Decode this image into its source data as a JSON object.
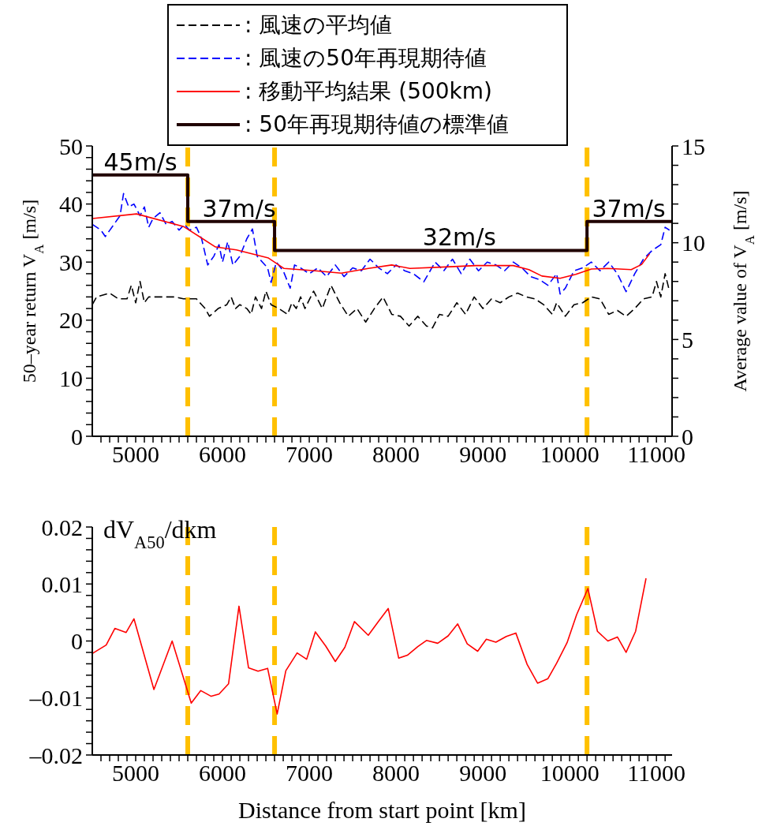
{
  "chart_data": [
    {
      "type": "line",
      "ylabel": "50–year return V$_{A}$ [m/s]",
      "y2label": "Average value of V$_{A}$ [m/s]",
      "legend": "top",
      "marker": "none",
      "grid": false,
      "xlim": [
        4500,
        11180
      ],
      "ylim": [
        0,
        50
      ],
      "y2lim": [
        0,
        15
      ],
      "xticks": [
        {
          "value": 4600,
          "label": null
        },
        {
          "value": 4700,
          "label": null
        },
        {
          "value": 4800,
          "label": null
        },
        {
          "value": 4900,
          "label": null
        },
        5000,
        {
          "value": 5100,
          "label": null
        },
        {
          "value": 5200,
          "label": null
        },
        {
          "value": 5300,
          "label": null
        },
        {
          "value": 5400,
          "label": null
        },
        {
          "value": 5500,
          "label": null
        },
        {
          "value": 5600,
          "label": null
        },
        {
          "value": 5700,
          "label": null
        },
        {
          "value": 5800,
          "label": null
        },
        {
          "value": 5900,
          "label": null
        },
        6000,
        {
          "value": 6100,
          "label": null
        },
        {
          "value": 6200,
          "label": null
        },
        {
          "value": 6300,
          "label": null
        },
        {
          "value": 6400,
          "label": null
        },
        {
          "value": 6500,
          "label": null
        },
        {
          "value": 6600,
          "label": null
        },
        {
          "value": 6700,
          "label": null
        },
        {
          "value": 6800,
          "label": null
        },
        {
          "value": 6900,
          "label": null
        },
        7000,
        {
          "value": 7100,
          "label": null
        },
        {
          "value": 7200,
          "label": null
        },
        {
          "value": 7300,
          "label": null
        },
        {
          "value": 7400,
          "label": null
        },
        {
          "value": 7500,
          "label": null
        },
        {
          "value": 7600,
          "label": null
        },
        {
          "value": 7700,
          "label": null
        },
        {
          "value": 7800,
          "label": null
        },
        {
          "value": 7900,
          "label": null
        },
        8000,
        {
          "value": 8100,
          "label": null
        },
        {
          "value": 8200,
          "label": null
        },
        {
          "value": 8300,
          "label": null
        },
        {
          "value": 8400,
          "label": null
        },
        {
          "value": 8500,
          "label": null
        },
        {
          "value": 8600,
          "label": null
        },
        {
          "value": 8700,
          "label": null
        },
        {
          "value": 8800,
          "label": null
        },
        {
          "value": 8900,
          "label": null
        },
        9000,
        {
          "value": 9100,
          "label": null
        },
        {
          "value": 9200,
          "label": null
        },
        {
          "value": 9300,
          "label": null
        },
        {
          "value": 9400,
          "label": null
        },
        {
          "value": 9500,
          "label": null
        },
        {
          "value": 9600,
          "label": null
        },
        {
          "value": 9700,
          "label": null
        },
        {
          "value": 9800,
          "label": null
        },
        {
          "value": 9900,
          "label": null
        },
        10000,
        {
          "value": 10100,
          "label": null
        },
        {
          "value": 10200,
          "label": null
        },
        {
          "value": 10300,
          "label": null
        },
        {
          "value": 10400,
          "label": null
        },
        {
          "value": 10500,
          "label": null
        },
        {
          "value": 10600,
          "label": null
        },
        {
          "value": 10700,
          "label": null
        },
        {
          "value": 10800,
          "label": null
        },
        {
          "value": 10900,
          "label": null
        },
        11000,
        {
          "value": 11100,
          "label": null
        }
      ],
      "yticks": [
        0,
        {
          "value": 2,
          "label": null
        },
        {
          "value": 4,
          "label": null
        },
        {
          "value": 6,
          "label": null
        },
        {
          "value": 8,
          "label": null
        },
        10,
        {
          "value": 12,
          "label": null
        },
        {
          "value": 14,
          "label": null
        },
        {
          "value": 16,
          "label": null
        },
        {
          "value": 18,
          "label": null
        },
        20,
        {
          "value": 22,
          "label": null
        },
        {
          "value": 24,
          "label": null
        },
        {
          "value": 26,
          "label": null
        },
        {
          "value": 28,
          "label": null
        },
        30,
        {
          "value": 32,
          "label": null
        },
        {
          "value": 34,
          "label": null
        },
        {
          "value": 36,
          "label": null
        },
        {
          "value": 38,
          "label": null
        },
        40,
        {
          "value": 42,
          "label": null
        },
        {
          "value": 44,
          "label": null
        },
        {
          "value": 46,
          "label": null
        },
        {
          "value": 48,
          "label": null
        },
        50
      ],
      "y2ticks": [
        0,
        {
          "value": 1,
          "label": null
        },
        {
          "value": 2,
          "label": null
        },
        {
          "value": 3,
          "label": null
        },
        {
          "value": 4,
          "label": null
        },
        5,
        {
          "value": 6,
          "label": null
        },
        {
          "value": 7,
          "label": null
        },
        {
          "value": 8,
          "label": null
        },
        {
          "value": 9,
          "label": null
        },
        10,
        {
          "value": 11,
          "label": null
        },
        {
          "value": 12,
          "label": null
        },
        {
          "value": 13,
          "label": null
        },
        {
          "value": 14,
          "label": null
        },
        15
      ],
      "series": [
        {
          "name": ": 風速の平均値",
          "color": "#000000",
          "axis": "y2",
          "line_style": "dashed",
          "x": [
            4500,
            4550,
            4700,
            4800,
            4900,
            4950,
            5000,
            5050,
            5100,
            5150,
            5300,
            5450,
            5550,
            5700,
            5800,
            5850,
            5950,
            6050,
            6100,
            6150,
            6200,
            6280,
            6330,
            6380,
            6450,
            6500,
            6560,
            6650,
            6750,
            6800,
            6850,
            6900,
            6950,
            7050,
            7150,
            7250,
            7350,
            7450,
            7550,
            7650,
            7750,
            7850,
            7950,
            8050,
            8150,
            8250,
            8350,
            8420,
            8500,
            8600,
            8700,
            8800,
            8900,
            9000,
            9100,
            9200,
            9300,
            9400,
            9500,
            9600,
            9700,
            9800,
            9850,
            9950,
            10050,
            10150,
            10250,
            10350,
            10450,
            10550,
            10650,
            10750,
            10850,
            10950,
            11000,
            11050,
            11100,
            11150
          ],
          "values": [
            6.8,
            7.2,
            7.4,
            7.1,
            7.1,
            7.8,
            6.9,
            8.0,
            6.9,
            7.2,
            7.2,
            7.2,
            7.1,
            7.1,
            6.6,
            6.2,
            6.6,
            6.8,
            7.2,
            6.6,
            6.8,
            6.6,
            6.3,
            7.2,
            6.6,
            7.5,
            6.8,
            6.6,
            6.3,
            6.9,
            6.6,
            7.2,
            6.6,
            7.5,
            6.6,
            7.8,
            6.9,
            6.2,
            6.6,
            5.9,
            6.6,
            7.2,
            6.3,
            6.2,
            5.7,
            6.2,
            5.7,
            5.6,
            6.3,
            6.2,
            6.9,
            6.3,
            7.2,
            6.6,
            7.1,
            6.9,
            7.2,
            7.4,
            7.2,
            7.1,
            6.8,
            6.3,
            6.9,
            6.2,
            6.8,
            6.9,
            7.2,
            7.1,
            6.3,
            6.5,
            6.2,
            6.6,
            7.1,
            7.2,
            8.0,
            7.2,
            8.4,
            7.5
          ]
        },
        {
          "name": ": 風速の50年再現期待値",
          "color": "#0000ff",
          "line_style": "dashed",
          "x": [
            4500,
            4600,
            4650,
            4750,
            4820,
            4860,
            4920,
            4980,
            5050,
            5100,
            5150,
            5200,
            5280,
            5350,
            5420,
            5500,
            5560,
            5620,
            5700,
            5760,
            5830,
            5900,
            5960,
            6000,
            6060,
            6120,
            6200,
            6280,
            6345,
            6400,
            6460,
            6520,
            6560,
            6620,
            6700,
            6780,
            6830,
            6900,
            7000,
            7100,
            7200,
            7300,
            7400,
            7500,
            7600,
            7700,
            7800,
            7900,
            8000,
            8100,
            8200,
            8320,
            8450,
            8550,
            8650,
            8750,
            8850,
            8950,
            9050,
            9150,
            9250,
            9350,
            9450,
            9550,
            9650,
            9750,
            9850,
            9890,
            9950,
            10050,
            10150,
            10250,
            10350,
            10450,
            10550,
            10650,
            10750,
            10850,
            10950,
            11050,
            11100,
            11150
          ],
          "values": [
            36.5,
            35.5,
            34.4,
            36.5,
            38,
            41.8,
            39.5,
            40,
            38,
            39.5,
            36,
            37.5,
            38.5,
            36.5,
            37,
            35.5,
            36.5,
            35.5,
            36,
            34,
            29.5,
            31,
            33,
            30,
            33.5,
            29.5,
            31,
            34,
            35.7,
            31,
            30,
            29,
            26.5,
            30,
            28.5,
            25.5,
            29.5,
            29,
            28,
            29,
            27.5,
            29.5,
            27.5,
            29,
            28.5,
            30.5,
            29,
            28,
            29.5,
            28.5,
            28,
            26.6,
            30,
            28.5,
            30.5,
            28,
            30.5,
            28.5,
            30,
            29.5,
            28.5,
            30,
            29,
            27.5,
            27,
            26,
            28,
            24.5,
            25.5,
            28.5,
            29,
            30,
            28.5,
            30,
            28,
            24.9,
            28,
            30.5,
            32,
            33,
            36,
            35.5
          ]
        },
        {
          "name": ": 移動平均結果 (500km)",
          "color": "#ff0000",
          "line_style": "solid",
          "x": [
            4500,
            5010,
            5555,
            5920,
            6160,
            6530,
            6710,
            7070,
            7370,
            7680,
            7950,
            8160,
            8620,
            8920,
            9350,
            9530,
            9680,
            9890,
            10070,
            10250,
            10440,
            10710,
            10830,
            10920
          ],
          "values": [
            37.5,
            38.3,
            36.1,
            32.6,
            32.1,
            30.7,
            28.9,
            28.5,
            28.1,
            28.9,
            29.5,
            28.9,
            29.2,
            29.4,
            29.4,
            28.7,
            27.6,
            27.2,
            27.9,
            28.8,
            28.9,
            28.7,
            29.6,
            31.4
          ]
        },
        {
          "name": ": 50年再現期待値の標準値",
          "type": "step",
          "color": "#200000",
          "line_style": "solid",
          "x": [
            4500,
            5600,
            6600,
            10200,
            11180
          ],
          "values": [
            45,
            37,
            32,
            37,
            37
          ]
        }
      ],
      "ref_lines": [
        {
          "axis": "x",
          "value": 5600,
          "color": "#ffc000",
          "line_style": "dashed"
        },
        {
          "axis": "x",
          "value": 6600,
          "color": "#ffc000",
          "line_style": "dashed"
        },
        {
          "axis": "x",
          "value": 10200,
          "color": "#ffc000",
          "line_style": "dashed"
        }
      ],
      "annotations": [
        {
          "text": "45m/s",
          "x": 5055,
          "y": 45
        },
        {
          "text": "37m/s",
          "x": 6190,
          "y": 37
        },
        {
          "text": "32m/s",
          "x": 8730,
          "y": 32
        },
        {
          "text": "37m/s",
          "x": 10680,
          "y": 37
        }
      ]
    },
    {
      "type": "line",
      "xlabel": "Distance from start point [km]",
      "ylabel": "dV$_{A50}$/dkm",
      "marker": "none",
      "grid": false,
      "xlim": [
        4500,
        11180
      ],
      "ylim": [
        -0.02,
        0.02
      ],
      "xticks": [
        {
          "value": 4600,
          "label": null
        },
        {
          "value": 4700,
          "label": null
        },
        {
          "value": 4800,
          "label": null
        },
        {
          "value": 4900,
          "label": null
        },
        5000,
        {
          "value": 5100,
          "label": null
        },
        {
          "value": 5200,
          "label": null
        },
        {
          "value": 5300,
          "label": null
        },
        {
          "value": 5400,
          "label": null
        },
        {
          "value": 5500,
          "label": null
        },
        {
          "value": 5600,
          "label": null
        },
        {
          "value": 5700,
          "label": null
        },
        {
          "value": 5800,
          "label": null
        },
        {
          "value": 5900,
          "label": null
        },
        6000,
        {
          "value": 6100,
          "label": null
        },
        {
          "value": 6200,
          "label": null
        },
        {
          "value": 6300,
          "label": null
        },
        {
          "value": 6400,
          "label": null
        },
        {
          "value": 6500,
          "label": null
        },
        {
          "value": 6600,
          "label": null
        },
        {
          "value": 6700,
          "label": null
        },
        {
          "value": 6800,
          "label": null
        },
        {
          "value": 6900,
          "label": null
        },
        7000,
        {
          "value": 7100,
          "label": null
        },
        {
          "value": 7200,
          "label": null
        },
        {
          "value": 7300,
          "label": null
        },
        {
          "value": 7400,
          "label": null
        },
        {
          "value": 7500,
          "label": null
        },
        {
          "value": 7600,
          "label": null
        },
        {
          "value": 7700,
          "label": null
        },
        {
          "value": 7800,
          "label": null
        },
        {
          "value": 7900,
          "label": null
        },
        8000,
        {
          "value": 8100,
          "label": null
        },
        {
          "value": 8200,
          "label": null
        },
        {
          "value": 8300,
          "label": null
        },
        {
          "value": 8400,
          "label": null
        },
        {
          "value": 8500,
          "label": null
        },
        {
          "value": 8600,
          "label": null
        },
        {
          "value": 8700,
          "label": null
        },
        {
          "value": 8800,
          "label": null
        },
        {
          "value": 8900,
          "label": null
        },
        9000,
        {
          "value": 9100,
          "label": null
        },
        {
          "value": 9200,
          "label": null
        },
        {
          "value": 9300,
          "label": null
        },
        {
          "value": 9400,
          "label": null
        },
        {
          "value": 9500,
          "label": null
        },
        {
          "value": 9600,
          "label": null
        },
        {
          "value": 9700,
          "label": null
        },
        {
          "value": 9800,
          "label": null
        },
        {
          "value": 9900,
          "label": null
        },
        10000,
        {
          "value": 10100,
          "label": null
        },
        {
          "value": 10200,
          "label": null
        },
        {
          "value": 10300,
          "label": null
        },
        {
          "value": 10400,
          "label": null
        },
        {
          "value": 10500,
          "label": null
        },
        {
          "value": 10600,
          "label": null
        },
        {
          "value": 10700,
          "label": null
        },
        {
          "value": 10800,
          "label": null
        },
        {
          "value": 10900,
          "label": null
        },
        11000,
        {
          "value": 11100,
          "label": null
        }
      ],
      "yticks": [
        {
          "value": -0.02,
          "label": "–0.02"
        },
        {
          "value": -0.018,
          "label": null
        },
        {
          "value": -0.016,
          "label": null
        },
        {
          "value": -0.014,
          "label": null
        },
        {
          "value": -0.012,
          "label": null
        },
        {
          "value": -0.01,
          "label": "–0.01"
        },
        {
          "value": -0.008,
          "label": null
        },
        {
          "value": -0.006,
          "label": null
        },
        {
          "value": -0.004,
          "label": null
        },
        {
          "value": -0.002,
          "label": null
        },
        0,
        {
          "value": 0.002,
          "label": null
        },
        {
          "value": 0.004,
          "label": null
        },
        {
          "value": 0.006,
          "label": null
        },
        {
          "value": 0.008,
          "label": null
        },
        0.01,
        {
          "value": 0.012,
          "label": null
        },
        {
          "value": 0.014,
          "label": null
        },
        {
          "value": 0.016,
          "label": null
        },
        {
          "value": 0.018,
          "label": null
        },
        0.02
      ],
      "series": [
        {
          "color": "#ff0000",
          "line_style": "solid",
          "x": [
            4500,
            4660,
            4760,
            4890,
            4980,
            5210,
            5420,
            5640,
            5750,
            5870,
            5960,
            6070,
            6190,
            6300,
            6410,
            6520,
            6630,
            6730,
            6860,
            6970,
            7070,
            7190,
            7300,
            7410,
            7520,
            7680,
            7800,
            7910,
            8030,
            8130,
            8250,
            8350,
            8480,
            8600,
            8710,
            8820,
            8940,
            9040,
            9150,
            9270,
            9380,
            9510,
            9630,
            9750,
            9850,
            9970,
            10080,
            10210,
            10320,
            10440,
            10550,
            10650,
            10760,
            10880
          ],
          "values": [
            -0.0022,
            -0.0007,
            0.0022,
            0.0015,
            0.0039,
            -0.0085,
            0,
            -0.0109,
            -0.0087,
            -0.0097,
            -0.0093,
            -0.0075,
            0.0061,
            -0.0047,
            -0.0053,
            -0.0048,
            -0.0128,
            -0.0052,
            -0.0021,
            -0.0032,
            0.0016,
            -0.0009,
            -0.0036,
            -0.0011,
            0.0034,
            0.001,
            0.0035,
            0.0057,
            -0.003,
            -0.0025,
            -0.001,
            0.0001,
            -0.0004,
            0.0009,
            0.003,
            -0.0005,
            -0.0018,
            0.0003,
            -0.0002,
            0.0008,
            0.0014,
            -0.0041,
            -0.0074,
            -0.0066,
            -0.0039,
            -0.0003,
            0.0046,
            0.0092,
            0.0017,
            0,
            0.0007,
            -0.002,
            0.0017,
            0.011
          ]
        }
      ],
      "ref_lines": [
        {
          "axis": "x",
          "value": 5600,
          "color": "#ffc000",
          "line_style": "dashed"
        },
        {
          "axis": "x",
          "value": 6600,
          "color": "#ffc000",
          "line_style": "dashed"
        },
        {
          "axis": "x",
          "value": 10200,
          "color": "#ffc000",
          "line_style": "dashed"
        }
      ]
    }
  ]
}
